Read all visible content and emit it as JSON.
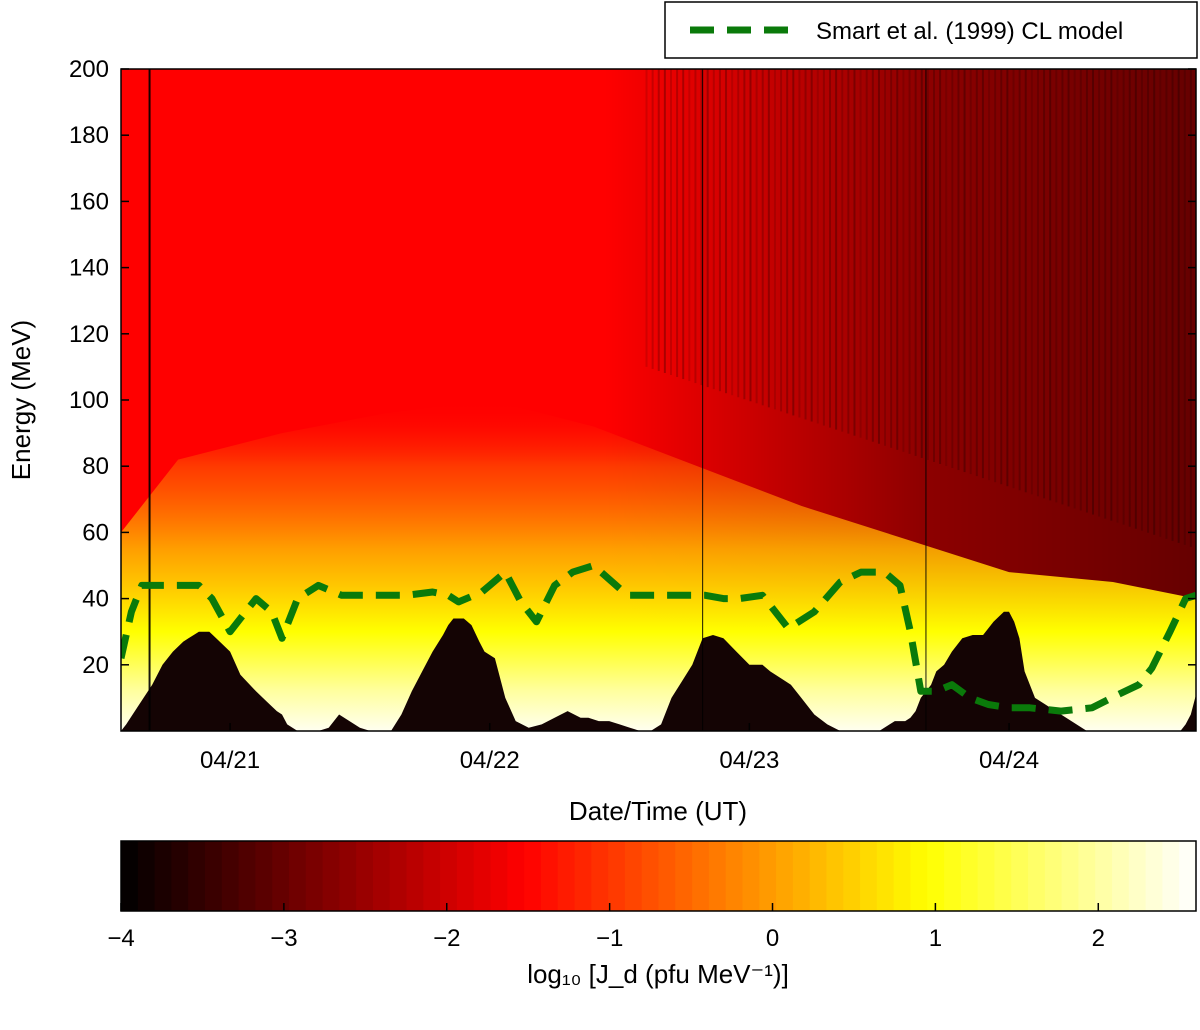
{
  "chart_data": {
    "type": "heatmap",
    "title": "",
    "xlabel": "Date/Time (UT)",
    "ylabel": "Energy (MeV)",
    "x_range_days": [
      20.58,
      24.72
    ],
    "x_ticks": [
      {
        "day": 21,
        "label": "04/21"
      },
      {
        "day": 22,
        "label": "04/22"
      },
      {
        "day": 23,
        "label": "04/23"
      },
      {
        "day": 24,
        "label": "04/24"
      }
    ],
    "ylim": [
      0,
      200
    ],
    "y_ticks": [
      {
        "value": 20,
        "label": "20"
      },
      {
        "value": 40,
        "label": "40"
      },
      {
        "value": 60,
        "label": "60"
      },
      {
        "value": 80,
        "label": "80"
      },
      {
        "value": 100,
        "label": "100"
      },
      {
        "value": 120,
        "label": "120"
      },
      {
        "value": 140,
        "label": "140"
      },
      {
        "value": 160,
        "label": "160"
      },
      {
        "value": 180,
        "label": "180"
      },
      {
        "value": 200,
        "label": "200"
      }
    ],
    "legend": {
      "placement": "above-top-right",
      "entries": [
        {
          "label": "Smart et al. (1999) CL model",
          "color": "#0a7a0a",
          "style": "dashed"
        }
      ]
    },
    "colorbar": {
      "label": "log₁₀ [J_d (pfu MeV⁻¹)]",
      "range": [
        -4,
        2.6
      ],
      "ticks": [
        {
          "value": -4,
          "label": "−4"
        },
        {
          "value": -3,
          "label": "−3"
        },
        {
          "value": -2,
          "label": "−2"
        },
        {
          "value": -1,
          "label": "−1"
        },
        {
          "value": 0,
          "label": "0"
        },
        {
          "value": 1,
          "label": "1"
        },
        {
          "value": 2,
          "label": "2"
        }
      ],
      "colormap": "hot",
      "colors": [
        "#000000",
        "#ff0000",
        "#ffff00",
        "#ffffff"
      ]
    },
    "cl_model_series": {
      "name": "Smart et al. (1999) CL model",
      "color": "#0a7a0a",
      "x": [
        20.58,
        20.62,
        20.66,
        20.72,
        20.8,
        20.88,
        20.93,
        21.0,
        21.04,
        21.1,
        21.16,
        21.2,
        21.26,
        21.34,
        21.43,
        21.55,
        21.68,
        21.78,
        21.84,
        21.88,
        21.97,
        22.0,
        22.06,
        22.12,
        22.18,
        22.25,
        22.32,
        22.4,
        22.53,
        22.68,
        22.83,
        22.9,
        22.96,
        23.05,
        23.15,
        23.25,
        23.35,
        23.43,
        23.52,
        23.58,
        23.62,
        23.66,
        23.72,
        23.78,
        23.85,
        23.92,
        24.0,
        24.08,
        24.2,
        24.32,
        24.42,
        24.5,
        24.55,
        24.62,
        24.68,
        24.72
      ],
      "y": [
        22,
        36,
        44,
        44,
        44,
        44,
        40,
        30,
        34,
        40,
        36,
        28,
        40,
        44,
        41,
        41,
        41,
        42,
        41,
        39,
        42,
        44,
        48,
        39,
        33,
        44,
        48,
        50,
        41,
        41,
        41,
        40,
        40,
        41,
        31,
        36,
        45,
        48,
        48,
        44,
        30,
        12,
        12,
        14,
        10,
        8,
        7,
        7,
        6,
        7,
        11,
        14,
        19,
        30,
        40,
        41
      ]
    },
    "cutoff_black_region": {
      "x": [
        20.58,
        20.6,
        20.65,
        20.7,
        20.74,
        20.78,
        20.82,
        20.84,
        20.88,
        20.92,
        20.96,
        21.0,
        21.04,
        21.1,
        21.14,
        21.18,
        21.2,
        21.22,
        21.26,
        21.3,
        21.34,
        21.38,
        21.42,
        21.46,
        21.5,
        21.54,
        21.58,
        21.62,
        21.66,
        21.7,
        21.74,
        21.78,
        21.82,
        21.84,
        21.86,
        21.88,
        21.9,
        21.93,
        21.96,
        21.98,
        22.02,
        22.06,
        22.1,
        22.15,
        22.2,
        22.25,
        22.3,
        22.35,
        22.38,
        22.42,
        22.46,
        22.5,
        22.54,
        22.58,
        22.62,
        22.66,
        22.7,
        22.74,
        22.78,
        22.8,
        22.82,
        22.86,
        22.9,
        22.95,
        23.0,
        23.05,
        23.08,
        23.12,
        23.16,
        23.2,
        23.25,
        23.3,
        23.35,
        23.4,
        23.45,
        23.5,
        23.54,
        23.56,
        23.6,
        23.62,
        23.64,
        23.66,
        23.7,
        23.72,
        23.75,
        23.78,
        23.82,
        23.86,
        23.9,
        23.94,
        23.98,
        24.0,
        24.02,
        24.04,
        24.06,
        24.1,
        24.3,
        24.5,
        24.6,
        24.66,
        24.68,
        24.7,
        24.72
      ],
      "y": [
        0,
        2,
        8,
        14,
        20,
        24,
        27,
        28,
        30,
        30,
        27,
        24,
        17,
        12,
        9,
        6,
        5,
        2,
        0,
        0,
        0,
        1,
        5,
        3,
        1,
        0,
        0,
        0,
        5,
        12,
        18,
        24,
        29,
        32,
        34,
        34,
        34,
        32,
        27,
        24,
        22,
        10,
        3,
        1,
        2,
        4,
        6,
        4,
        4,
        3,
        3,
        2,
        1,
        0,
        0,
        2,
        10,
        15,
        20,
        24,
        28,
        29,
        28,
        24,
        20,
        20,
        18,
        16,
        14,
        10,
        5,
        2,
        0,
        0,
        0,
        0,
        2,
        3,
        3,
        4,
        6,
        10,
        14,
        18,
        20,
        24,
        28,
        29,
        29,
        33,
        36,
        36,
        33,
        28,
        18,
        10,
        0,
        0,
        0,
        0,
        2,
        5,
        11,
        14
      ]
    },
    "vertical_lines_x": [
      20.69,
      22.82,
      23.68
    ]
  }
}
